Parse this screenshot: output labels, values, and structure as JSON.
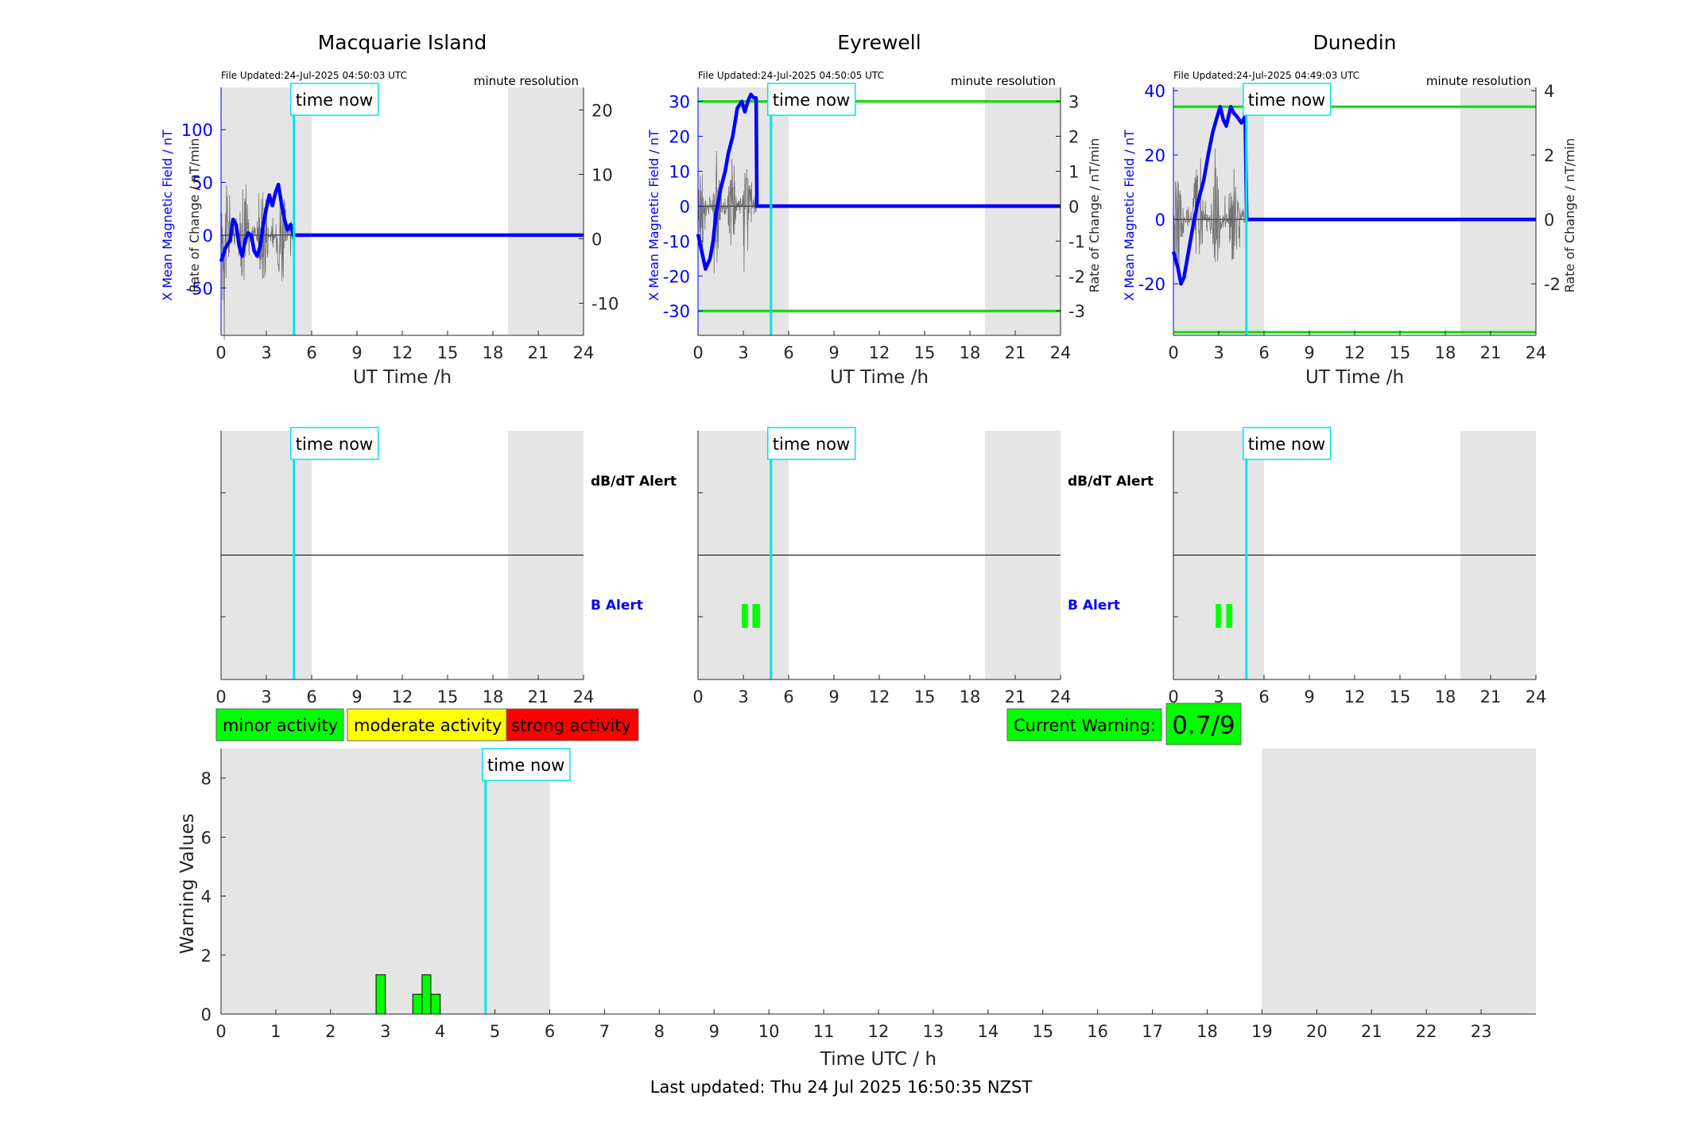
{
  "footer": "Last updated: Thu 24 Jul 2025 16:50:35 NZST",
  "legend": {
    "minor": "minor activity",
    "moderate": "moderate activity",
    "strong": "strong activity"
  },
  "current_warning": {
    "label": "Current Warning:",
    "value": "0.7/9"
  },
  "alert_labels": {
    "dbdt": "dB/dT Alert",
    "b": "B Alert"
  },
  "time_now_label": "time now",
  "colors": {
    "x_field": "#0000ff",
    "rate": "#555555",
    "time_now": "#00e5ee",
    "threshold": "#00dd00",
    "minor": "#00ff00",
    "moderate": "#ffff00",
    "strong": "#ff0000",
    "night_shade": "#e5e5e5"
  },
  "chart_data": [
    {
      "type": "line",
      "title": "Macquarie Island",
      "file_updated": "File Updated:24-Jul-2025 04:50:03 UTC",
      "resolution": "minute resolution",
      "xlabel": "UT Time /h",
      "ylabel_left": "X Mean Magnetic Field / nT",
      "ylabel_right": "Rate of Change / nT/min",
      "xlim": [
        0,
        24
      ],
      "xticks": [
        0,
        3,
        6,
        9,
        12,
        15,
        18,
        21,
        24
      ],
      "ylim_left": [
        -95,
        140
      ],
      "yticks_left": [
        -50,
        0,
        50,
        100
      ],
      "ylim_right": [
        -15,
        23.5
      ],
      "yticks_right": [
        -10,
        0,
        10,
        20
      ],
      "time_now": 4.83,
      "shaded_hours": [
        [
          0,
          6
        ],
        [
          19,
          24
        ]
      ],
      "thresholds_right": [],
      "series": [
        {
          "name": "X Mean Magnetic Field",
          "axis": "left",
          "x": [
            0,
            0.3,
            0.6,
            0.8,
            1.0,
            1.2,
            1.4,
            1.6,
            1.8,
            2.0,
            2.2,
            2.4,
            2.6,
            2.8,
            3.0,
            3.2,
            3.4,
            3.6,
            3.8,
            4.0,
            4.2,
            4.4,
            4.6,
            4.8,
            24
          ],
          "y": [
            -25,
            -12,
            -5,
            15,
            10,
            -10,
            -20,
            -5,
            2,
            0,
            -15,
            -20,
            -10,
            10,
            25,
            38,
            28,
            40,
            48,
            30,
            15,
            5,
            10,
            0,
            0
          ]
        }
      ]
    },
    {
      "type": "line",
      "title": "Eyrewell",
      "file_updated": "File Updated:24-Jul-2025 04:50:05 UTC",
      "resolution": "minute resolution",
      "xlabel": "UT Time /h",
      "ylabel_left": "X Mean Magnetic Field / nT",
      "ylabel_right": "Rate of Change / nT/min",
      "xlim": [
        0,
        24
      ],
      "xticks": [
        0,
        3,
        6,
        9,
        12,
        15,
        18,
        21,
        24
      ],
      "ylim_left": [
        -37,
        34
      ],
      "yticks_left": [
        -30,
        -20,
        -10,
        0,
        10,
        20,
        30
      ],
      "ylim_right": [
        -3.7,
        3.4
      ],
      "yticks_right": [
        -3,
        -2,
        -1,
        0,
        1,
        2,
        3
      ],
      "time_now": 4.83,
      "shaded_hours": [
        [
          0,
          6
        ],
        [
          19,
          24
        ]
      ],
      "thresholds_right": [
        3,
        -3
      ],
      "series": [
        {
          "name": "X Mean Magnetic Field",
          "axis": "left",
          "x": [
            0,
            0.2,
            0.5,
            0.8,
            1.0,
            1.2,
            1.5,
            1.8,
            2.0,
            2.3,
            2.6,
            2.9,
            3.1,
            3.3,
            3.5,
            3.7,
            3.85,
            3.9,
            24
          ],
          "y": [
            -8,
            -12,
            -18,
            -15,
            -10,
            -2,
            5,
            10,
            15,
            20,
            28,
            30,
            27,
            30,
            32,
            31,
            31,
            0,
            0
          ]
        }
      ]
    },
    {
      "type": "line",
      "title": "Dunedin",
      "file_updated": "File Updated:24-Jul-2025 04:49:03 UTC",
      "resolution": "minute resolution",
      "xlabel": "UT Time /h",
      "ylabel_left": "X Mean Magnetic Field / nT",
      "ylabel_right": "Rate of Change / nT/min",
      "xlim": [
        0,
        24
      ],
      "xticks": [
        0,
        3,
        6,
        9,
        12,
        15,
        18,
        21,
        24
      ],
      "ylim_left": [
        -36,
        41
      ],
      "yticks_left": [
        -20,
        0,
        20,
        40
      ],
      "ylim_right": [
        -3.6,
        4.1
      ],
      "yticks_right": [
        -2,
        0,
        2,
        4
      ],
      "time_now": 4.83,
      "shaded_hours": [
        [
          0,
          6
        ],
        [
          19,
          24
        ]
      ],
      "thresholds_right": [
        3.5,
        -3.5
      ],
      "series": [
        {
          "name": "X Mean Magnetic Field",
          "axis": "left",
          "x": [
            0,
            0.3,
            0.5,
            0.7,
            1.0,
            1.3,
            1.6,
            2.0,
            2.3,
            2.6,
            2.9,
            3.1,
            3.3,
            3.5,
            3.8,
            4.0,
            4.2,
            4.5,
            4.75,
            4.85,
            24
          ],
          "y": [
            -10,
            -15,
            -20,
            -18,
            -10,
            -2,
            5,
            12,
            20,
            27,
            32,
            35,
            31,
            29,
            35,
            33,
            32,
            30,
            32,
            0,
            0
          ]
        }
      ]
    },
    {
      "type": "bar",
      "title": "",
      "panel": "alerts",
      "xlim": [
        0,
        24
      ],
      "xticks": [
        0,
        3,
        6,
        9,
        12,
        15,
        18,
        21,
        24
      ],
      "time_now": 4.83,
      "shaded_hours": [
        [
          0,
          6
        ],
        [
          19,
          24
        ]
      ],
      "stations": [
        {
          "station": "Macquarie Island",
          "dbdt_alerts": [],
          "b_alerts": []
        },
        {
          "station": "Eyrewell",
          "dbdt_alerts": [],
          "b_alerts": [
            [
              2.9,
              3.3
            ],
            [
              3.6,
              4.1
            ]
          ]
        },
        {
          "station": "Dunedin",
          "dbdt_alerts": [],
          "b_alerts": [
            [
              2.8,
              3.15
            ],
            [
              3.5,
              3.9
            ]
          ]
        }
      ]
    },
    {
      "type": "bar",
      "title": "",
      "xlabel": "Time UTC / h",
      "ylabel": "Warning Values",
      "xlim": [
        0,
        24
      ],
      "xticks": [
        0,
        1,
        2,
        3,
        4,
        5,
        6,
        7,
        8,
        9,
        10,
        11,
        12,
        13,
        14,
        15,
        16,
        17,
        18,
        19,
        20,
        21,
        22,
        23
      ],
      "ylim": [
        0,
        9
      ],
      "yticks": [
        0,
        2,
        4,
        6,
        8
      ],
      "time_now": 4.83,
      "shaded_hours": [
        [
          0,
          6
        ],
        [
          19,
          24
        ]
      ],
      "bars": [
        {
          "start": 2.83,
          "end": 3.0,
          "value": 1.33
        },
        {
          "start": 3.5,
          "end": 3.67,
          "value": 0.67
        },
        {
          "start": 3.67,
          "end": 3.83,
          "value": 1.33
        },
        {
          "start": 3.83,
          "end": 4.0,
          "value": 0.67
        }
      ]
    }
  ]
}
